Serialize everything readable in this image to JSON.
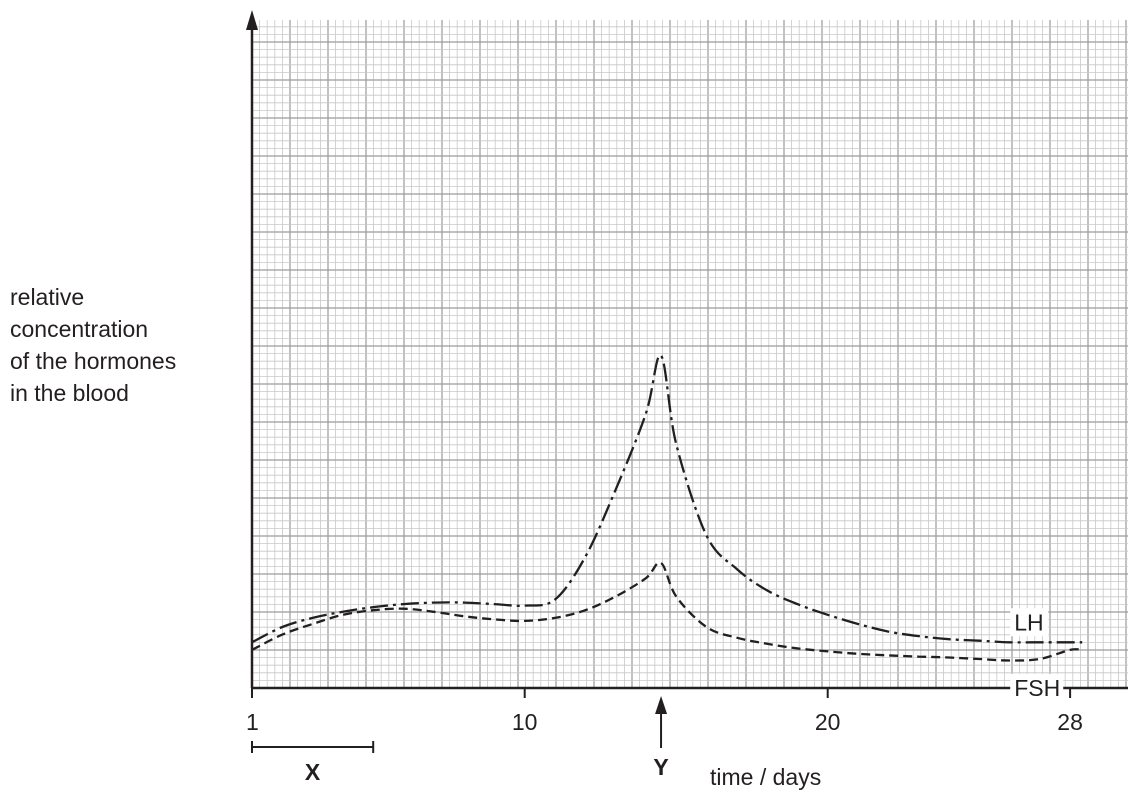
{
  "chart_data": {
    "type": "line",
    "title": "",
    "xlabel": "time / days",
    "ylabel_lines": [
      "relative",
      "concentration",
      "of the hormones",
      "in the blood"
    ],
    "xlim": [
      1,
      29.5
    ],
    "ylim": [
      0,
      10
    ],
    "x_ticks": [
      {
        "value": 1,
        "label": "1"
      },
      {
        "value": 10,
        "label": "10"
      },
      {
        "value": 20,
        "label": "20"
      },
      {
        "value": 28,
        "label": "28"
      }
    ],
    "y_ticks_shown": false,
    "grid": true,
    "series": [
      {
        "name": "LH",
        "line_style": "dash-dot",
        "x": [
          1,
          2,
          3,
          4,
          5,
          6,
          7,
          8,
          9,
          10,
          11,
          12,
          13,
          14,
          14.5,
          15,
          16,
          17,
          18,
          19,
          20,
          21,
          22,
          23,
          24,
          25,
          26,
          27,
          28,
          28.4
        ],
        "values": [
          1.5,
          2.0,
          2.3,
          2.5,
          2.65,
          2.75,
          2.8,
          2.8,
          2.75,
          2.7,
          2.9,
          4.3,
          6.5,
          9.0,
          10.9,
          8.0,
          5.0,
          3.9,
          3.2,
          2.75,
          2.4,
          2.1,
          1.85,
          1.7,
          1.6,
          1.55,
          1.5,
          1.5,
          1.5,
          1.5
        ]
      },
      {
        "name": "FSH",
        "line_style": "dashed",
        "x": [
          1,
          2,
          3,
          4,
          5,
          6,
          7,
          8,
          9,
          10,
          11,
          12,
          13,
          14,
          14.5,
          15,
          16,
          17,
          18,
          19,
          20,
          21,
          22,
          23,
          24,
          25,
          26,
          27,
          28,
          28.4
        ],
        "values": [
          1.25,
          1.75,
          2.1,
          2.4,
          2.55,
          2.6,
          2.5,
          2.35,
          2.25,
          2.2,
          2.3,
          2.55,
          3.0,
          3.6,
          4.1,
          3.0,
          2.0,
          1.65,
          1.45,
          1.3,
          1.2,
          1.12,
          1.07,
          1.03,
          1.0,
          0.95,
          0.9,
          0.95,
          1.25,
          1.25
        ]
      }
    ],
    "annotations": [
      {
        "label": "X",
        "kind": "bracket",
        "x_start": 1,
        "x_end": 5
      },
      {
        "label": "Y",
        "kind": "arrow",
        "x": 14.5
      }
    ]
  }
}
